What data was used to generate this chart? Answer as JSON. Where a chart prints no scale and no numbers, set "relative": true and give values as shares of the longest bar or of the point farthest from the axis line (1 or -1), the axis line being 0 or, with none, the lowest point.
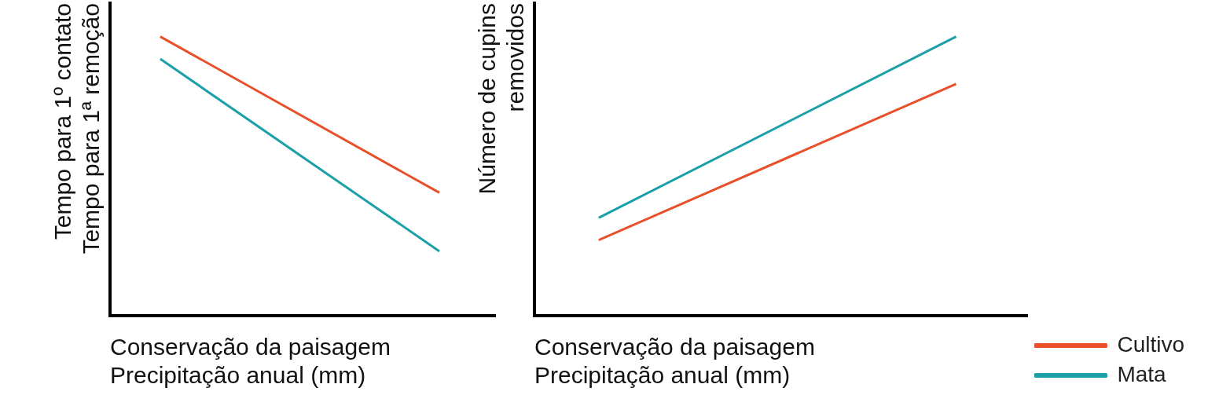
{
  "chart_data": [
    {
      "type": "line",
      "relative": true,
      "categories": [
        null,
        null
      ],
      "xlabel": "Conservação da paisagem\nPrecipitação anual (mm)",
      "ylabel": "Tempo para 1º contato\nTempo para 1ª remoção",
      "legend": false,
      "grid": false,
      "marker": "none",
      "series": [
        {
          "color": "#e8502a",
          "values": [
            1,
            0.44
          ]
        },
        {
          "color": "#1ba0a8",
          "values": [
            0.92,
            0.23
          ]
        }
      ]
    },
    {
      "type": "line",
      "relative": true,
      "categories": [
        null,
        null
      ],
      "xlabel": "Conservação da paisagem\nPrecipitação anual (mm)",
      "ylabel": "Número de cupins\nremovidos",
      "legend": "bottom right",
      "grid": false,
      "marker": "none",
      "series": [
        {
          "name": "Cultivo",
          "color": "#e8502a",
          "values": [
            0.27,
            0.83
          ]
        },
        {
          "name": "Mata",
          "color": "#1ba0a8",
          "values": [
            0.35,
            1
          ]
        }
      ]
    }
  ]
}
